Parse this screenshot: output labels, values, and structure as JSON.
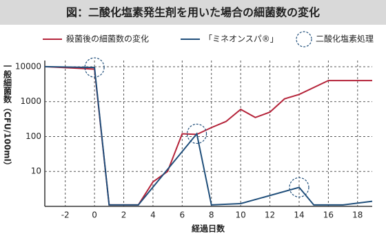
{
  "chart_data": {
    "type": "line",
    "title": "図：二酸化塩素発生剤を用いた場合の細菌数の変化",
    "x_label": "経過日数",
    "y_label": "一般細菌数（CFU/100ml）",
    "log_y": true,
    "grid": true,
    "xlim": [
      -3.4,
      19
    ],
    "xticks": [
      -2,
      0,
      2,
      4,
      6,
      8,
      10,
      12,
      14,
      16,
      18
    ],
    "ylim": [
      1,
      15000
    ],
    "yticks": [
      10,
      100,
      1000,
      10000
    ],
    "series": [
      {
        "name": "殺菌後の細菌数の変化",
        "color": "#b5243a",
        "x": [
          -3.4,
          0,
          1,
          3,
          4,
          5,
          6,
          7,
          8,
          9,
          10,
          11,
          12,
          13,
          14,
          16,
          19
        ],
        "values": [
          10000,
          8500,
          1.1,
          1.1,
          5,
          10,
          120,
          115,
          180,
          270,
          600,
          350,
          500,
          1200,
          1600,
          4000,
          4000
        ]
      },
      {
        "name": "「ミネオンスパ®」",
        "color": "#1f4e7a",
        "x": [
          -3.4,
          0,
          1,
          3,
          7,
          8,
          10,
          14,
          15,
          17,
          19
        ],
        "values": [
          10000,
          9500,
          1.1,
          1.1,
          120,
          1.1,
          1.2,
          3.5,
          1.1,
          1.1,
          1.4
        ]
      }
    ],
    "markers": {
      "name": "二酸化塩素処理",
      "color": "#1f4e7a",
      "x": [
        0,
        7,
        14
      ],
      "values": [
        9500,
        120,
        3.5
      ]
    }
  }
}
